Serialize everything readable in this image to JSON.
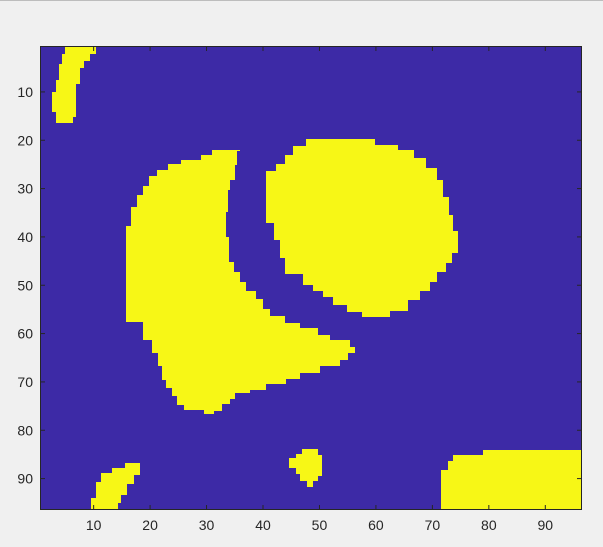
{
  "colors": {
    "background_class": "#3d2aa6",
    "foreground_class": "#f7f716",
    "axis": "#262626",
    "figure_bg": "#f0f0f0"
  },
  "chart_data": {
    "type": "heatmap",
    "title": "",
    "xlabel": "",
    "ylabel": "",
    "xlim": [
      0.5,
      96.5
    ],
    "ylim": [
      0.5,
      96.5
    ],
    "x_ticks": [
      10,
      20,
      30,
      40,
      50,
      60,
      70,
      80,
      90
    ],
    "y_ticks": [
      10,
      20,
      30,
      40,
      50,
      60,
      70,
      80,
      90
    ],
    "y_direction": "reverse",
    "colormap": "parula",
    "values_legend": [
      "0 (background)",
      "1 (foreground)"
    ],
    "foreground_regions": [
      {
        "label": "top-left-blob",
        "approx_x_range": [
          3,
          10
        ],
        "approx_y_range": [
          1,
          16
        ]
      },
      {
        "label": "left-crescent",
        "approx_x_range": [
          15,
          56
        ],
        "approx_y_range": [
          22,
          76
        ]
      },
      {
        "label": "center-round-blob",
        "approx_x_range": [
          40,
          74
        ],
        "approx_y_range": [
          19,
          56
        ]
      },
      {
        "label": "small-blob-bottom-center",
        "approx_x_range": [
          46,
          50
        ],
        "approx_y_range": [
          84,
          89
        ]
      },
      {
        "label": "bottom-left-blob",
        "approx_x_range": [
          10,
          17
        ],
        "approx_y_range": [
          87,
          96
        ]
      },
      {
        "label": "bottom-right-block",
        "approx_x_range": [
          72,
          96
        ],
        "approx_y_range": [
          85,
          96
        ]
      }
    ]
  }
}
